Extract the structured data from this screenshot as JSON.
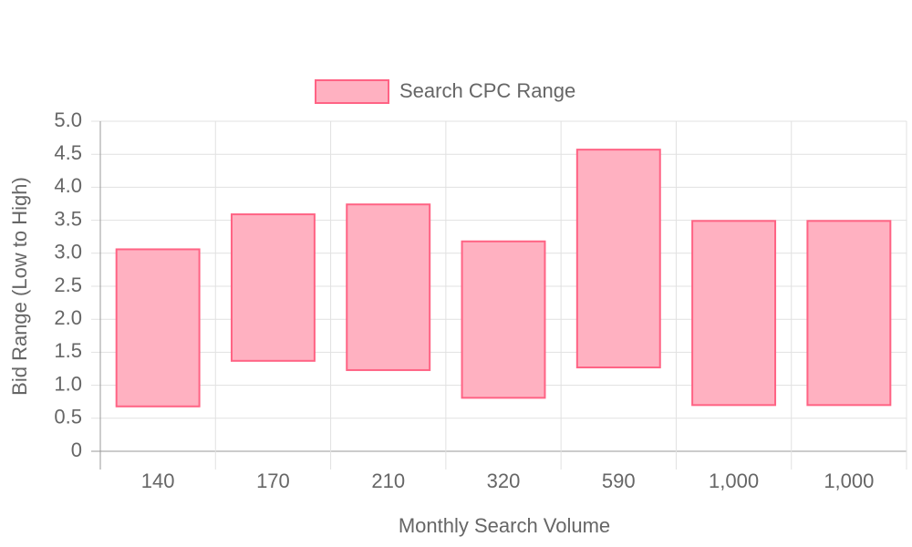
{
  "chart_data": {
    "type": "floating-bar",
    "x_label": "Monthly Search Volume",
    "y_label": "Bid Range (Low to High)",
    "categories": [
      "140",
      "170",
      "210",
      "320",
      "590",
      "1,000",
      "1,000"
    ],
    "series": [
      {
        "name": "Search CPC Range",
        "color": "#ff6384",
        "fill": "#ffb1c1",
        "low": [
          0.68,
          1.37,
          1.23,
          0.81,
          1.27,
          0.7,
          0.7
        ],
        "high": [
          3.06,
          3.59,
          3.74,
          3.18,
          4.57,
          3.49,
          3.49
        ]
      }
    ],
    "ylim": [
      0,
      5
    ],
    "yticks": [
      0,
      0.5,
      {
        "value": 1,
        "label": "1.0"
      },
      1.5,
      {
        "value": 2,
        "label": "2.0"
      },
      2.5,
      {
        "value": 3,
        "label": "3.0"
      },
      3.5,
      {
        "value": 4,
        "label": "4.0"
      },
      4.5,
      {
        "value": 5,
        "label": "5.0"
      }
    ],
    "grid": true,
    "legend": "top"
  }
}
